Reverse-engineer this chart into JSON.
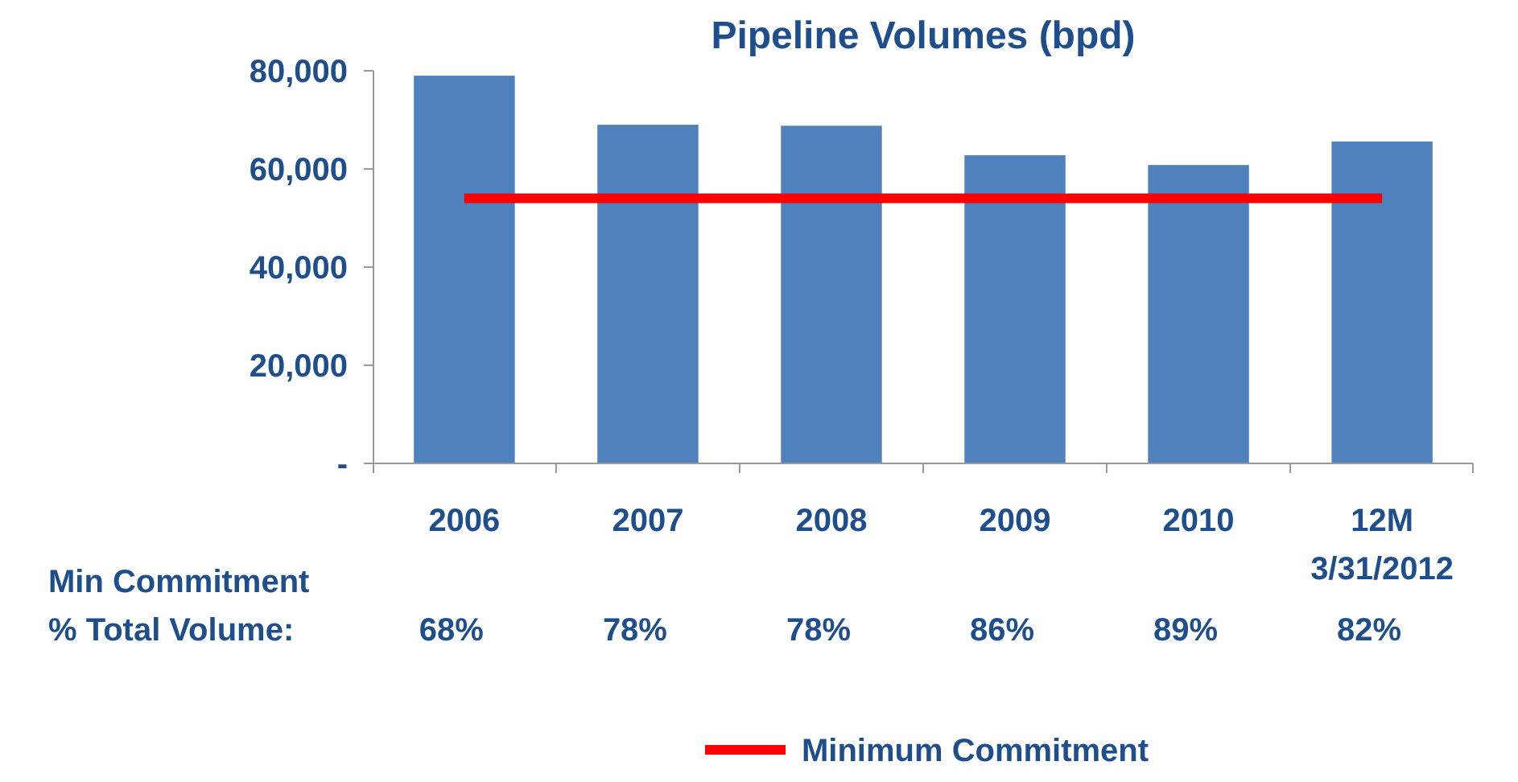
{
  "chart_data": {
    "type": "bar",
    "title": "Pipeline Volumes (bpd)",
    "categories": [
      "2006",
      "2007",
      "2008",
      "2009",
      "2010",
      "12M\n3/31/2012"
    ],
    "series": [
      {
        "color": "#4f81bd",
        "values": [
          79000,
          69000,
          68800,
          62800,
          60800,
          65600
        ]
      },
      {
        "type": "line",
        "name": "Minimum Commitment",
        "color": "#ff0000",
        "values": [
          54000,
          54000,
          54000,
          54000,
          54000,
          54000
        ]
      }
    ],
    "ylim": [
      0,
      80000
    ],
    "yticks": [
      {
        "value": 0,
        "label": "-"
      },
      {
        "value": 20000,
        "label": "20,000"
      },
      {
        "value": 40000,
        "label": "40,000"
      },
      {
        "value": 60000,
        "label": "60,000"
      },
      {
        "value": 80000,
        "label": "80,000"
      }
    ],
    "grid": false,
    "legend": "bottom",
    "marker": "none",
    "line_style": "solid",
    "annotations": [
      "Min Commitment\n% Total Volume:",
      "68%",
      "78%",
      "78%",
      "86%",
      "89%",
      "82%"
    ]
  }
}
